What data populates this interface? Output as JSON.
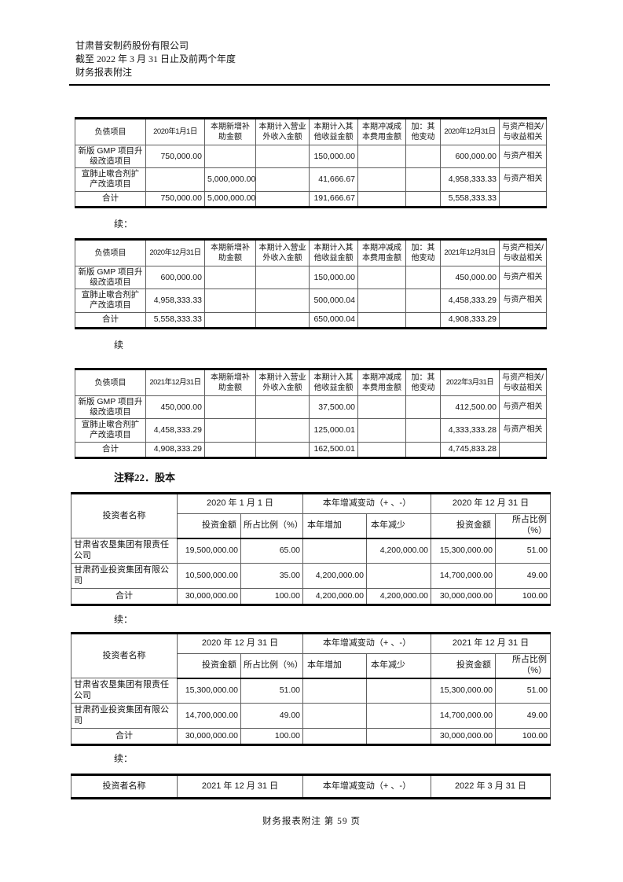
{
  "page": {
    "company_line": "甘肃普安制药股份有限公司",
    "period_line": "截至 2022 年 3 月 31 日止及前两个年度",
    "doc_line": "财务报表附注",
    "section_heading": "注释22．股本",
    "footer": "财务报表附注 第 59 页"
  },
  "colors": {
    "page_bg": "#ffffff",
    "text": "#141414",
    "table_line": "#5e5e5e",
    "outer_border": "#000000"
  },
  "gmp_tables": [
    {
      "headers": [
        "负债项目",
        "2020年1月1日",
        "本期新增补助金额",
        "本期计入营业外收入金额",
        "本期计入其他收益金额",
        "本期冲减成本费用金额",
        "加：其他变动",
        "2020年12月31日",
        "与资产相关/与收益相关"
      ],
      "rows": [
        [
          "新版 GMP 项目升级改造项目",
          "750,000.00",
          "",
          "",
          "150,000.00",
          "",
          "",
          "600,000.00",
          "与资产相关"
        ],
        [
          "宣肺止嗽合剂扩产改造项目",
          "",
          "5,000,000.00",
          "",
          "41,666.67",
          "",
          "",
          "4,958,333.33",
          "与资产相关"
        ],
        [
          "合计",
          "750,000.00",
          "5,000,000.00",
          "",
          "191,666.67",
          "",
          "",
          "5,558,333.33",
          ""
        ]
      ]
    },
    {
      "label": "续：",
      "headers": [
        "负债项目",
        "2020年12月31日",
        "本期新增补助金额",
        "本期计入营业外收入金额",
        "本期计入其他收益金额",
        "本期冲减成本费用金额",
        "加：其他变动",
        "2021年12月31日",
        "与资产相关/与收益相关"
      ],
      "rows": [
        [
          "新版 GMP 项目升级改造项目",
          "600,000.00",
          "",
          "",
          "150,000.00",
          "",
          "",
          "450,000.00",
          "与资产相关"
        ],
        [
          "宣肺止嗽合剂扩产改造项目",
          "4,958,333.33",
          "",
          "",
          "500,000.04",
          "",
          "",
          "4,458,333.29",
          "与资产相关"
        ],
        [
          "合计",
          "5,558,333.33",
          "",
          "",
          "650,000.04",
          "",
          "",
          "4,908,333.29",
          ""
        ]
      ]
    },
    {
      "label": "续",
      "headers": [
        "负债项目",
        "2021年12月31日",
        "本期新增补助金额",
        "本期计入营业外收入金额",
        "本期计入其他收益金额",
        "本期冲减成本费用金额",
        "加：其他变动",
        "2022年3月31日",
        "与资产相关/与收益相关"
      ],
      "rows": [
        [
          "新版 GMP 项目升级改造项目",
          "450,000.00",
          "",
          "",
          "37,500.00",
          "",
          "",
          "412,500.00",
          "与资产相关"
        ],
        [
          "宣肺止嗽合剂扩产改造项目",
          "4,458,333.29",
          "",
          "",
          "125,000.01",
          "",
          "",
          "4,333,333.28",
          "与资产相关"
        ],
        [
          "合计",
          "4,908,333.29",
          "",
          "",
          "162,500.01",
          "",
          "",
          "4,745,833.28",
          ""
        ]
      ]
    }
  ],
  "share_tables": [
    {
      "first_col": "投资者名称",
      "period_left": "2020 年 1 月 1 日",
      "period_mid": "本年增减变动（+ 、-）",
      "period_right": "2020 年 12 月 31 日",
      "sub_headers": [
        "投资金额",
        "所占比例（%）",
        "本年增加",
        "本年减少",
        "投资金额",
        "所占比例（%）"
      ],
      "rows": [
        [
          "甘肃省农垦集团有限责任公司",
          "19,500,000.00",
          "65.00",
          "",
          "4,200,000.00",
          "15,300,000.00",
          "51.00"
        ],
        [
          "甘肃药业投资集团有限公司",
          "10,500,000.00",
          "35.00",
          "4,200,000.00",
          "",
          "14,700,000.00",
          "49.00"
        ],
        [
          "合计",
          "30,000,000.00",
          "100.00",
          "4,200,000.00",
          "4,200,000.00",
          "30,000,000.00",
          "100.00"
        ]
      ]
    },
    {
      "label": "续：",
      "first_col": "投资者名称",
      "period_left": "2020 年 12 月 31 日",
      "period_mid": "本年增减变动（+ 、-）",
      "period_right": "2021 年 12 月 31 日",
      "sub_headers": [
        "投资金额",
        "所占比例（%）",
        "本年增加",
        "本年减少",
        "投资金额",
        "所占比例（%）"
      ],
      "rows": [
        [
          "甘肃省农垦集团有限责任公司",
          "15,300,000.00",
          "51.00",
          "",
          "",
          "15,300,000.00",
          "51.00"
        ],
        [
          "甘肃药业投资集团有限公司",
          "14,700,000.00",
          "49.00",
          "",
          "",
          "14,700,000.00",
          "49.00"
        ],
        [
          "合计",
          "30,000,000.00",
          "100.00",
          "",
          "",
          "30,000,000.00",
          "100.00"
        ]
      ]
    },
    {
      "label": "续：",
      "first_col": "投资者名称",
      "period_left": "2021 年 12 月 31 日",
      "period_mid": "本年增减变动（+ 、-）",
      "period_right": "2022 年 3 月 31 日"
    }
  ]
}
